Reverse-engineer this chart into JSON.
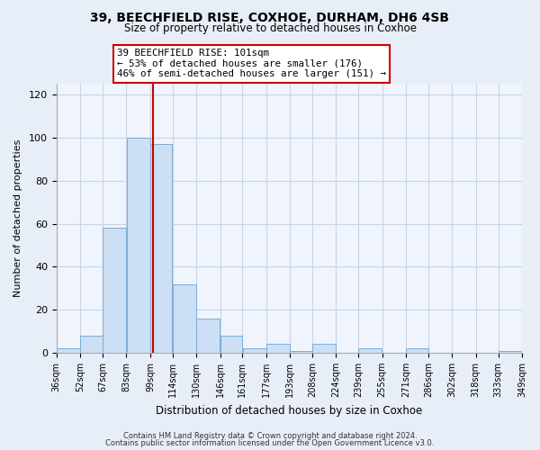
{
  "title": "39, BEECHFIELD RISE, COXHOE, DURHAM, DH6 4SB",
  "subtitle": "Size of property relative to detached houses in Coxhoe",
  "xlabel": "Distribution of detached houses by size in Coxhoe",
  "ylabel": "Number of detached properties",
  "bar_edges": [
    36,
    52,
    67,
    83,
    99,
    114,
    130,
    146,
    161,
    177,
    193,
    208,
    224,
    239,
    255,
    271,
    286,
    302,
    318,
    333,
    349
  ],
  "bar_heights": [
    2,
    8,
    58,
    100,
    97,
    32,
    16,
    8,
    2,
    4,
    1,
    4,
    0,
    2,
    0,
    2,
    0,
    0,
    0,
    1
  ],
  "bar_color": "#ccdff5",
  "bar_edge_color": "#7badd4",
  "property_line_x": 101,
  "property_line_color": "#cc0000",
  "ylim": [
    0,
    125
  ],
  "yticks": [
    0,
    20,
    40,
    60,
    80,
    100,
    120
  ],
  "annotation_line1": "39 BEECHFIELD RISE: 101sqm",
  "annotation_line2": "← 53% of detached houses are smaller (176)",
  "annotation_line3": "46% of semi-detached houses are larger (151) →",
  "footer_line1": "Contains HM Land Registry data © Crown copyright and database right 2024.",
  "footer_line2": "Contains public sector information licensed under the Open Government Licence v3.0.",
  "background_color": "#e8eef8",
  "plot_bg_color": "#f0f4fc",
  "grid_color": "#c8d4e8"
}
